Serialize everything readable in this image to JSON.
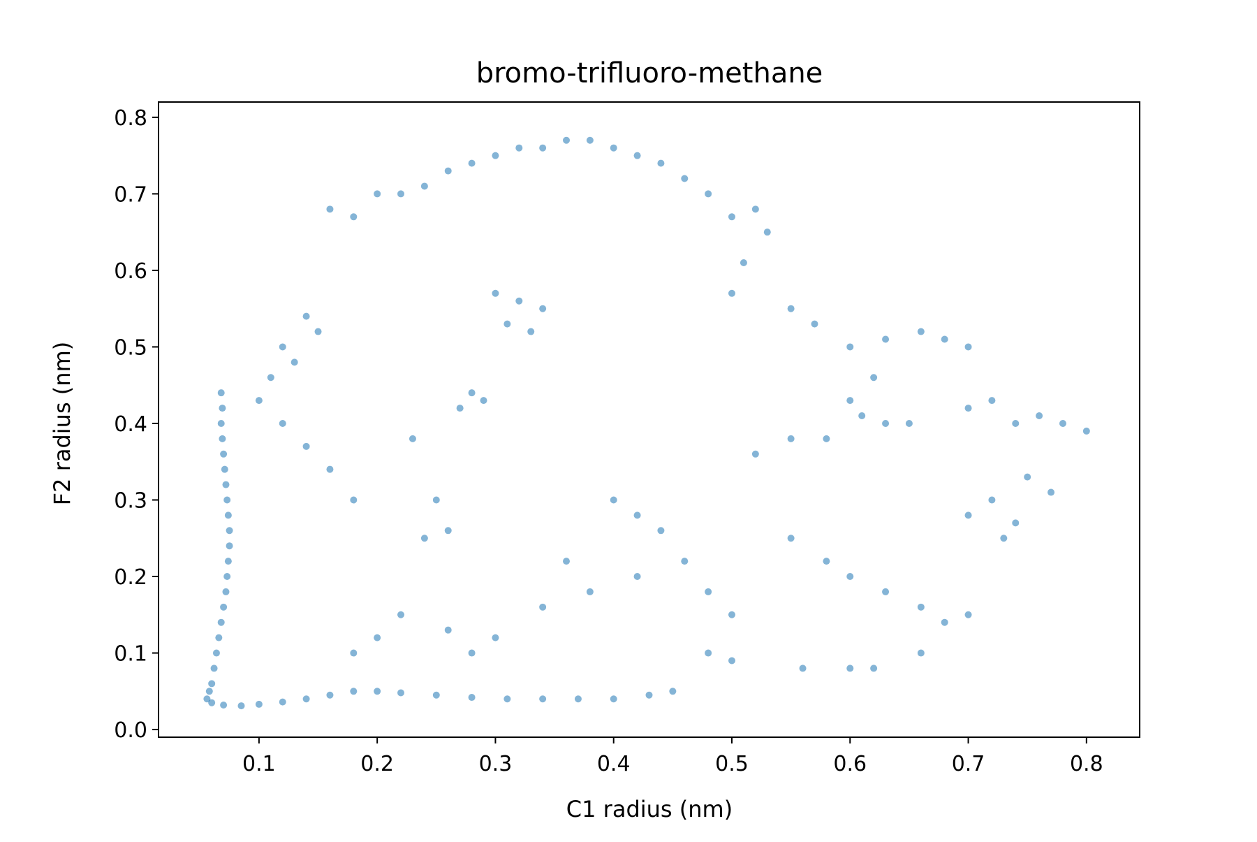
{
  "chart_data": {
    "type": "scatter",
    "title": "bromo-trifluoro-methane",
    "xlabel": "C1 radius (nm)",
    "ylabel": "F2 radius (nm)",
    "xlim": [
      0.015,
      0.845
    ],
    "ylim": [
      -0.01,
      0.82
    ],
    "xticks": [
      "0.1",
      "0.2",
      "0.3",
      "0.4",
      "0.5",
      "0.6",
      "0.7",
      "0.8"
    ],
    "yticks": [
      "0.0",
      "0.1",
      "0.2",
      "0.3",
      "0.4",
      "0.5",
      "0.6",
      "0.7",
      "0.8"
    ],
    "grid": false,
    "legend": false,
    "point_color": "#1f77b4",
    "series": [
      {
        "points": [
          [
            0.068,
            0.44
          ],
          [
            0.069,
            0.42
          ],
          [
            0.068,
            0.4
          ],
          [
            0.069,
            0.38
          ],
          [
            0.07,
            0.36
          ],
          [
            0.071,
            0.34
          ],
          [
            0.072,
            0.32
          ],
          [
            0.073,
            0.3
          ],
          [
            0.074,
            0.28
          ],
          [
            0.075,
            0.26
          ],
          [
            0.075,
            0.24
          ],
          [
            0.074,
            0.22
          ],
          [
            0.073,
            0.2
          ],
          [
            0.072,
            0.18
          ],
          [
            0.07,
            0.16
          ],
          [
            0.068,
            0.14
          ],
          [
            0.066,
            0.12
          ],
          [
            0.064,
            0.1
          ],
          [
            0.062,
            0.08
          ],
          [
            0.06,
            0.06
          ],
          [
            0.058,
            0.05
          ],
          [
            0.056,
            0.04
          ],
          [
            0.06,
            0.035
          ],
          [
            0.07,
            0.032
          ],
          [
            0.085,
            0.031
          ],
          [
            0.1,
            0.033
          ],
          [
            0.12,
            0.036
          ],
          [
            0.14,
            0.04
          ],
          [
            0.16,
            0.045
          ],
          [
            0.18,
            0.05
          ],
          [
            0.2,
            0.05
          ],
          [
            0.22,
            0.048
          ],
          [
            0.25,
            0.045
          ],
          [
            0.28,
            0.042
          ],
          [
            0.31,
            0.04
          ],
          [
            0.34,
            0.04
          ],
          [
            0.37,
            0.04
          ],
          [
            0.4,
            0.04
          ],
          [
            0.43,
            0.045
          ],
          [
            0.45,
            0.05
          ],
          [
            0.16,
            0.68
          ],
          [
            0.18,
            0.67
          ],
          [
            0.2,
            0.7
          ],
          [
            0.22,
            0.7
          ],
          [
            0.24,
            0.71
          ],
          [
            0.26,
            0.73
          ],
          [
            0.28,
            0.74
          ],
          [
            0.3,
            0.75
          ],
          [
            0.32,
            0.76
          ],
          [
            0.34,
            0.76
          ],
          [
            0.36,
            0.77
          ],
          [
            0.38,
            0.77
          ],
          [
            0.4,
            0.76
          ],
          [
            0.42,
            0.75
          ],
          [
            0.44,
            0.74
          ],
          [
            0.46,
            0.72
          ],
          [
            0.48,
            0.7
          ],
          [
            0.5,
            0.67
          ],
          [
            0.52,
            0.68
          ],
          [
            0.53,
            0.65
          ],
          [
            0.51,
            0.61
          ],
          [
            0.5,
            0.57
          ],
          [
            0.3,
            0.57
          ],
          [
            0.32,
            0.56
          ],
          [
            0.34,
            0.55
          ],
          [
            0.31,
            0.53
          ],
          [
            0.33,
            0.52
          ],
          [
            0.28,
            0.44
          ],
          [
            0.27,
            0.42
          ],
          [
            0.29,
            0.43
          ],
          [
            0.23,
            0.38
          ],
          [
            0.25,
            0.3
          ],
          [
            0.26,
            0.26
          ],
          [
            0.24,
            0.25
          ],
          [
            0.12,
            0.5
          ],
          [
            0.13,
            0.48
          ],
          [
            0.14,
            0.54
          ],
          [
            0.15,
            0.52
          ],
          [
            0.11,
            0.46
          ],
          [
            0.1,
            0.43
          ],
          [
            0.12,
            0.4
          ],
          [
            0.14,
            0.37
          ],
          [
            0.16,
            0.34
          ],
          [
            0.18,
            0.3
          ],
          [
            0.55,
            0.55
          ],
          [
            0.57,
            0.53
          ],
          [
            0.6,
            0.5
          ],
          [
            0.63,
            0.51
          ],
          [
            0.66,
            0.52
          ],
          [
            0.68,
            0.51
          ],
          [
            0.7,
            0.5
          ],
          [
            0.62,
            0.46
          ],
          [
            0.6,
            0.43
          ],
          [
            0.61,
            0.41
          ],
          [
            0.63,
            0.4
          ],
          [
            0.65,
            0.4
          ],
          [
            0.58,
            0.38
          ],
          [
            0.55,
            0.38
          ],
          [
            0.52,
            0.36
          ],
          [
            0.7,
            0.42
          ],
          [
            0.72,
            0.43
          ],
          [
            0.74,
            0.4
          ],
          [
            0.76,
            0.41
          ],
          [
            0.78,
            0.4
          ],
          [
            0.8,
            0.39
          ],
          [
            0.75,
            0.33
          ],
          [
            0.77,
            0.31
          ],
          [
            0.72,
            0.3
          ],
          [
            0.74,
            0.27
          ],
          [
            0.73,
            0.25
          ],
          [
            0.7,
            0.28
          ],
          [
            0.55,
            0.25
          ],
          [
            0.58,
            0.22
          ],
          [
            0.6,
            0.2
          ],
          [
            0.63,
            0.18
          ],
          [
            0.66,
            0.16
          ],
          [
            0.68,
            0.14
          ],
          [
            0.7,
            0.15
          ],
          [
            0.66,
            0.1
          ],
          [
            0.62,
            0.08
          ],
          [
            0.6,
            0.08
          ],
          [
            0.56,
            0.08
          ],
          [
            0.5,
            0.09
          ],
          [
            0.48,
            0.1
          ],
          [
            0.4,
            0.3
          ],
          [
            0.42,
            0.28
          ],
          [
            0.44,
            0.26
          ],
          [
            0.46,
            0.22
          ],
          [
            0.48,
            0.18
          ],
          [
            0.5,
            0.15
          ],
          [
            0.42,
            0.2
          ],
          [
            0.38,
            0.18
          ],
          [
            0.36,
            0.22
          ],
          [
            0.34,
            0.16
          ],
          [
            0.3,
            0.12
          ],
          [
            0.28,
            0.1
          ],
          [
            0.26,
            0.13
          ],
          [
            0.22,
            0.15
          ],
          [
            0.2,
            0.12
          ],
          [
            0.18,
            0.1
          ]
        ]
      }
    ]
  }
}
